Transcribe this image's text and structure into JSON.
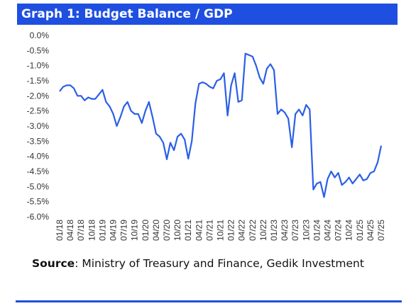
{
  "header": {
    "title": "Graph 1: Budget Balance / GDP"
  },
  "source": {
    "label": "Source",
    "text": ": Ministry of Treasury and Finance, Gedik Investment"
  },
  "colors": {
    "header_bg": "#1f4fe0",
    "line": "#2a5fe6",
    "rule": "#1f4fe0"
  },
  "chart_data": {
    "type": "line",
    "title": "Graph 1: Budget Balance / GDP",
    "xlabel": "",
    "ylabel": "",
    "ylim": [
      -6.0,
      0.0
    ],
    "y_ticks": [
      "0.0%",
      "-0.5%",
      "-1.0%",
      "-1.5%",
      "-2.0%",
      "-2.5%",
      "-3.0%",
      "-3.5%",
      "-4.0%",
      "-4.5%",
      "-5.0%",
      "-5.5%",
      "-6.0%"
    ],
    "x_ticks": [
      "01/18",
      "04/18",
      "07/18",
      "10/18",
      "01/19",
      "04/19",
      "07/19",
      "10/19",
      "01/20",
      "04/20",
      "07/20",
      "10/20",
      "01/21",
      "04/21",
      "07/21",
      "10/21",
      "01/22",
      "04/22",
      "07/22",
      "10/22",
      "01/23",
      "04/23",
      "07/23",
      "10/23",
      "01/24",
      "04/24",
      "07/24",
      "10/24",
      "01/25",
      "04/25",
      "07/25"
    ],
    "grid": false,
    "legend": "none",
    "series": [
      {
        "values": [
          -1.85,
          -1.7,
          -1.65,
          -1.65,
          -1.75,
          -2.0,
          -2.0,
          -2.15,
          -2.05,
          -2.1,
          -2.1,
          -1.95,
          -1.8,
          -2.2,
          -2.35,
          -2.6,
          -3.0,
          -2.7,
          -2.35,
          -2.2,
          -2.5,
          -2.6,
          -2.6,
          -2.9,
          -2.5,
          -2.2,
          -2.7,
          -3.25,
          -3.35,
          -3.55,
          -4.1,
          -3.55,
          -3.8,
          -3.35,
          -3.25,
          -3.45,
          -4.08,
          -3.5,
          -2.25,
          -1.6,
          -1.55,
          -1.6,
          -1.7,
          -1.75,
          -1.5,
          -1.45,
          -1.25,
          -2.65,
          -1.65,
          -1.25,
          -2.2,
          -2.15,
          -0.6,
          -0.65,
          -0.7,
          -1.0,
          -1.4,
          -1.6,
          -1.1,
          -0.95,
          -1.15,
          -2.6,
          -2.45,
          -2.55,
          -2.75,
          -3.7,
          -2.6,
          -2.45,
          -2.65,
          -2.3,
          -2.45,
          -5.1,
          -4.9,
          -4.85,
          -5.35,
          -4.75,
          -4.5,
          -4.7,
          -4.55,
          -4.95,
          -4.85,
          -4.7,
          -4.9,
          -4.75,
          -4.6,
          -4.8,
          -4.75,
          -4.55,
          -4.5,
          -4.2,
          -3.65
        ]
      }
    ]
  }
}
